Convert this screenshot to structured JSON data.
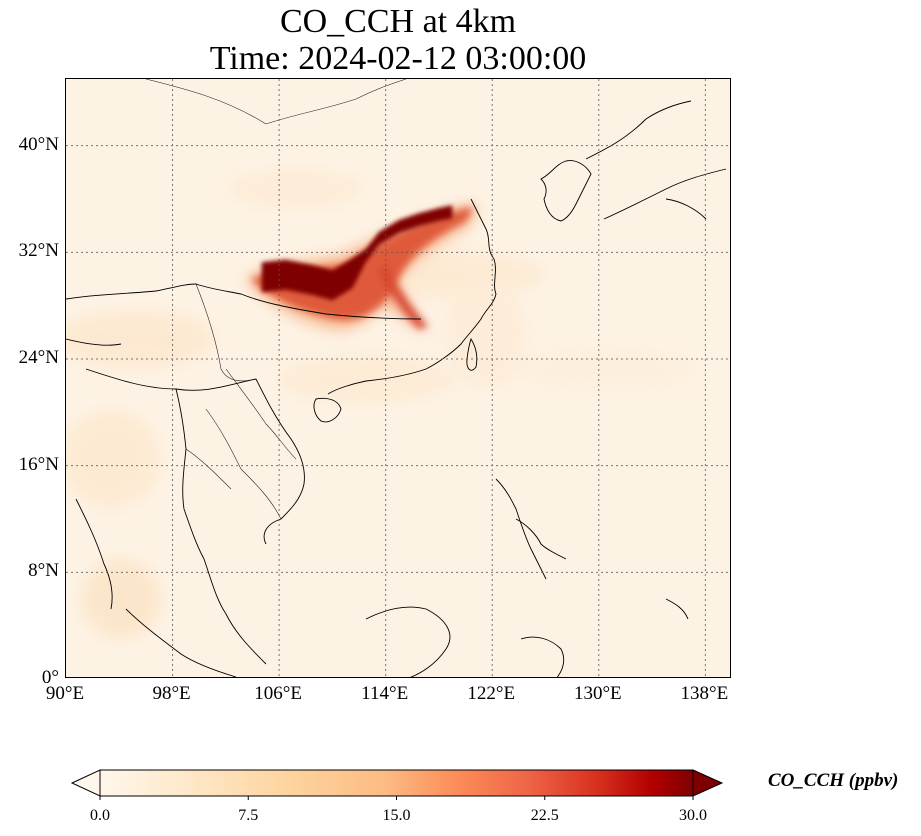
{
  "title": {
    "line1": "CO_CCH at 4km",
    "line2": "Time: 2024-02-12 03:00:00"
  },
  "map": {
    "extent": {
      "lon_min": 90,
      "lon_max": 140,
      "lat_min": 0,
      "lat_max": 45
    },
    "lat_ticks": [
      {
        "value": 40,
        "label": "40°N"
      },
      {
        "value": 32,
        "label": "32°N"
      },
      {
        "value": 24,
        "label": "24°N"
      },
      {
        "value": 16,
        "label": "16°N"
      },
      {
        "value": 8,
        "label": "8°N"
      },
      {
        "value": 0,
        "label": "0°"
      }
    ],
    "lon_ticks": [
      {
        "value": 90,
        "label": "90°E"
      },
      {
        "value": 98,
        "label": "98°E"
      },
      {
        "value": 106,
        "label": "106°E"
      },
      {
        "value": 114,
        "label": "114°E"
      },
      {
        "value": 122,
        "label": "122°E"
      },
      {
        "value": 130,
        "label": "130°E"
      },
      {
        "value": 138,
        "label": "138°E"
      }
    ],
    "gridlines": "dotted",
    "field_description_colors": {
      "background": "#fdf3e5",
      "low": "#fde4c4",
      "mid": "#f08a5a",
      "high": "#7f0000"
    },
    "plume_core": [
      [
        104.7,
        30.2
      ],
      [
        106.5,
        30.4
      ],
      [
        108.5,
        30.0
      ],
      [
        110.0,
        29.6
      ],
      [
        111.5,
        30.5
      ],
      [
        112.5,
        31.7
      ],
      [
        113.5,
        33.0
      ],
      [
        115.0,
        33.9
      ],
      [
        116.5,
        34.4
      ],
      [
        118.0,
        34.8
      ],
      [
        119.0,
        35.0
      ]
    ]
  },
  "colorbar": {
    "label": "CO_CCH (ppbv)",
    "min": 0.0,
    "max": 30.0,
    "extend": "both",
    "ticks": [
      "0.0",
      "7.5",
      "15.0",
      "22.5",
      "30.0"
    ]
  }
}
